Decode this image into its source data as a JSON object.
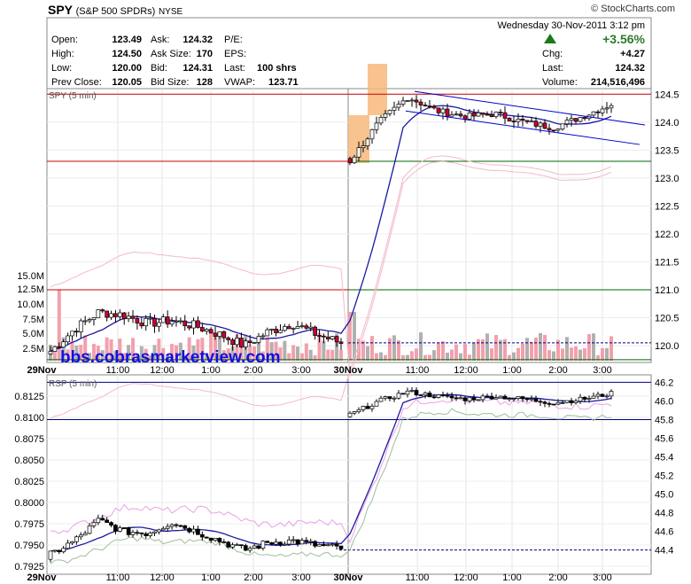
{
  "header": {
    "symbol": "SPY",
    "name": "(S&P 500 SPDRs)",
    "exchange": "NYSE",
    "source": "© StockCharts.com",
    "datetime": "Wednesday  30-Nov-2011  3:12 pm"
  },
  "quote": {
    "open_label": "Open:",
    "open": "123.49",
    "high_label": "High:",
    "high": "124.50",
    "low_label": "Low:",
    "low": "120.00",
    "prev_label": "Prev Close:",
    "prev": "120.05",
    "ask_label": "Ask:",
    "ask": "124.32",
    "asksize_label": "Ask Size:",
    "asksize": "170",
    "bid_label": "Bid:",
    "bid": "124.31",
    "bidsize_label": "Bid Size:",
    "bidsize": "128",
    "pe_label": "P/E:",
    "pe": "",
    "eps_label": "EPS:",
    "eps": "",
    "lasttrade_label": "Last:",
    "lasttrade": "100 shrs",
    "vwap_label": "VWAP:",
    "vwap": "123.71",
    "pct": "+3.56%",
    "chg_label": "Chg:",
    "chg": "+4.27",
    "last_label": "Last:",
    "last": "124.32",
    "volume_label": "Volume:",
    "volume": "214,516,496"
  },
  "watermark": "bbs.cobrasmarketview.com",
  "colors": {
    "up": "#ffffff",
    "down": "#cc0033",
    "ma": "#1a1aa0",
    "band": "#f3b9c9",
    "hline_red": "#cc0000",
    "hline_green": "#006600",
    "hline_blue": "#000080",
    "highlight": "#f7b97a",
    "volume_up": "#b0b0b0",
    "volume_down": "#f2a0ac"
  },
  "chart_data": [
    {
      "type": "candlestick",
      "title": "SPY (5 min)",
      "x_labels": [
        "29Nov",
        "11:00",
        "12:00",
        "1:00",
        "2:00",
        "3:00",
        "30Nov",
        "11:00",
        "12:00",
        "1:00",
        "2:00",
        "3:00"
      ],
      "y_ticks": [
        "124.5",
        "124.0",
        "123.5",
        "123.0",
        "122.5",
        "122.0",
        "121.5",
        "121.0",
        "120.5",
        "120.0"
      ],
      "ylim": [
        119.7,
        124.6
      ],
      "volume_ticks": [
        "15.0M",
        "12.5M",
        "10.0M",
        "7.5M",
        "5.0M",
        "2.5M"
      ],
      "horizontal_lines": [
        124.5,
        123.3,
        123.3,
        121.0,
        121.0,
        120.05,
        119.75
      ],
      "sample_closes": [
        119.9,
        120.3,
        120.6,
        120.55,
        120.4,
        120.45,
        120.35,
        120.2,
        120.0,
        120.25,
        120.4,
        120.2,
        120.05,
        123.3,
        124.0,
        124.45,
        124.2,
        124.1,
        124.15,
        124.0,
        123.9,
        124.1,
        124.32
      ]
    },
    {
      "type": "candlestick",
      "title": "RSP (5 min)",
      "x_labels": [
        "29Nov",
        "11:00",
        "12:00",
        "1:00",
        "2:00",
        "3:00",
        "30Nov",
        "11:00",
        "12:00",
        "1:00",
        "2:00",
        "3:00"
      ],
      "y_ticks_left": [
        "0.8125",
        "0.8100",
        "0.8075",
        "0.8050",
        "0.8025",
        "0.8000",
        "0.7975",
        "0.7950",
        "0.7925"
      ],
      "y_ticks_right": [
        "46.2",
        "46.0",
        "45.8",
        "45.6",
        "45.4",
        "45.2",
        "45.0",
        "44.8",
        "44.6",
        "44.4"
      ],
      "horizontal_lines_right": [
        46.2,
        45.8,
        44.4
      ]
    }
  ]
}
